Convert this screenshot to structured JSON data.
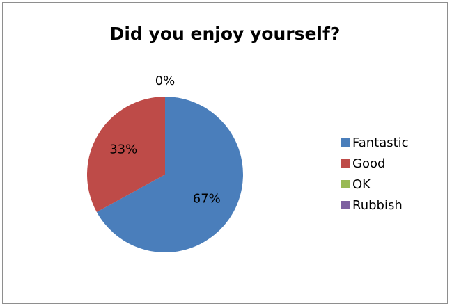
{
  "chart_data": {
    "type": "pie",
    "title": "Did you enjoy yourself?",
    "categories": [
      "Fantastic",
      "Good",
      "OK",
      "Rubbish"
    ],
    "values": [
      67,
      33,
      0,
      0
    ],
    "data_labels": [
      "67%",
      "33%",
      "0%",
      ""
    ],
    "colors": [
      "#4a7ebb",
      "#be4b48",
      "#98b954",
      "#7d60a0"
    ],
    "legend_position": "right"
  }
}
